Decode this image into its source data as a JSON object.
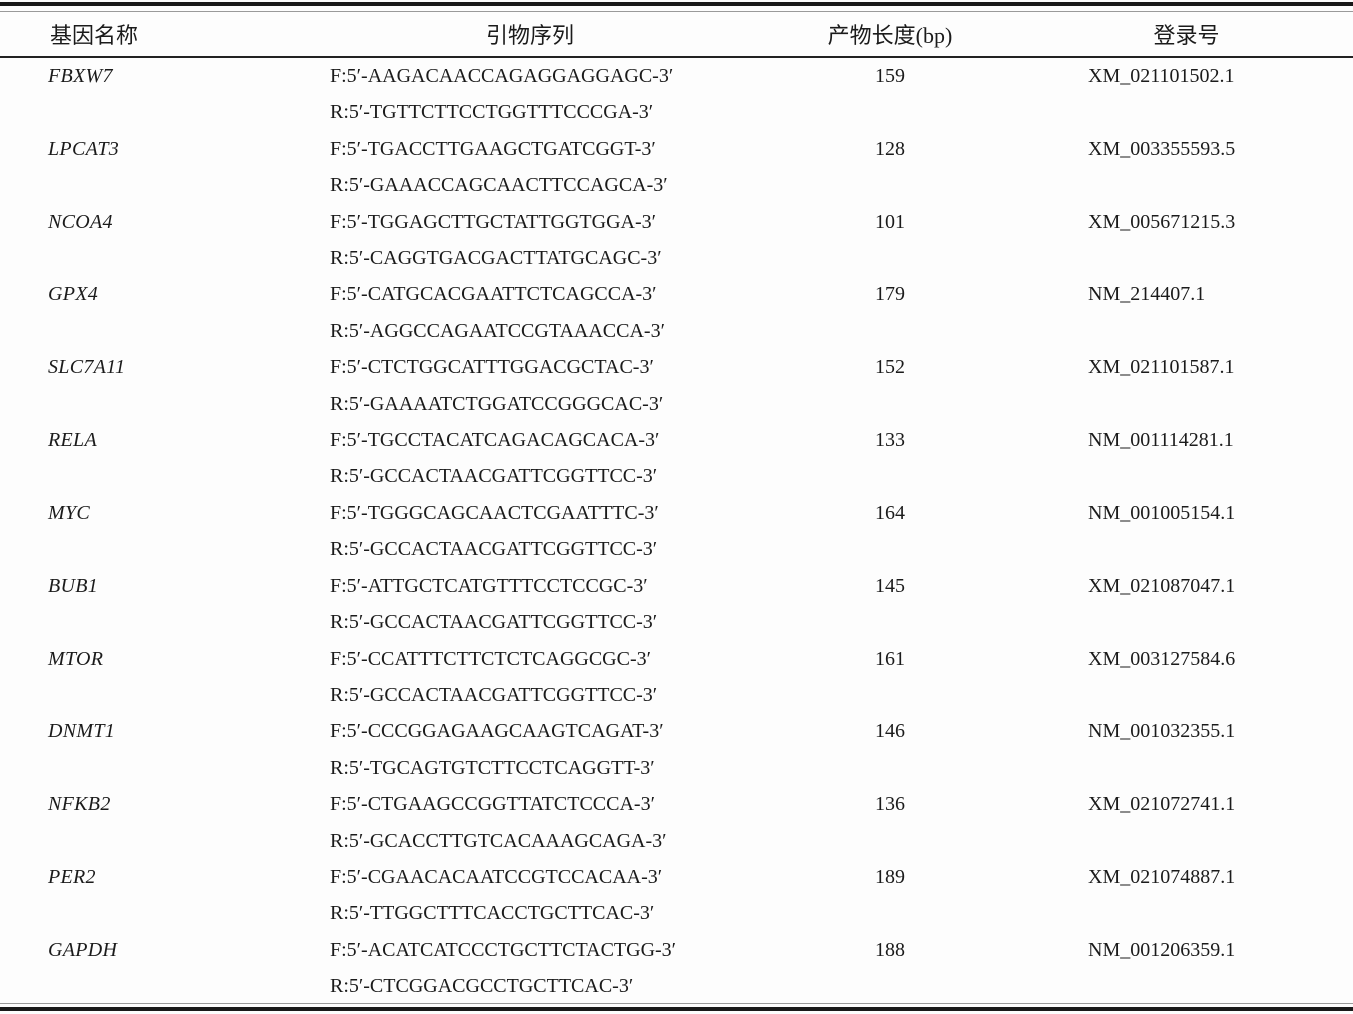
{
  "table": {
    "columns": [
      "基因名称",
      "引物序列",
      "产物长度(bp)",
      "登录号"
    ],
    "rows": [
      {
        "gene": "FBXW7",
        "forward": "F:5′-AAGACAACCAGAGGAGGAGC-3′",
        "reverse": "R:5′-TGTTCTTCCTGGTTTCCCGA-3′",
        "length": "159",
        "accession": "XM_021101502.1"
      },
      {
        "gene": "LPCAT3",
        "forward": "F:5′-TGACCTTGAAGCTGATCGGT-3′",
        "reverse": "R:5′-GAAACCAGCAACTTCCAGCA-3′",
        "length": "128",
        "accession": "XM_003355593.5"
      },
      {
        "gene": "NCOA4",
        "forward": "F:5′-TGGAGCTTGCTATTGGTGGA-3′",
        "reverse": "R:5′-CAGGTGACGACTTATGCAGC-3′",
        "length": "101",
        "accession": "XM_005671215.3"
      },
      {
        "gene": "GPX4",
        "forward": "F:5′-CATGCACGAATTCTCAGCCA-3′",
        "reverse": "R:5′-AGGCCAGAATCCGTAAACCA-3′",
        "length": "179",
        "accession": "NM_214407.1"
      },
      {
        "gene": "SLC7A11",
        "forward": "F:5′-CTCTGGCATTTGGACGCTAC-3′",
        "reverse": "R:5′-GAAAATCTGGATCCGGGCAC-3′",
        "length": "152",
        "accession": "XM_021101587.1"
      },
      {
        "gene": "RELA",
        "forward": "F:5′-TGCCTACATCAGACAGCACA-3′",
        "reverse": "R:5′-GCCACTAACGATTCGGTTCC-3′",
        "length": "133",
        "accession": "NM_001114281.1"
      },
      {
        "gene": "MYC",
        "forward": "F:5′-TGGGCAGCAACTCGAATTTC-3′",
        "reverse": "R:5′-GCCACTAACGATTCGGTTCC-3′",
        "length": "164",
        "accession": "NM_001005154.1"
      },
      {
        "gene": "BUB1",
        "forward": "F:5′-ATTGCTCATGTTTCCTCCGC-3′",
        "reverse": "R:5′-GCCACTAACGATTCGGTTCC-3′",
        "length": "145",
        "accession": "XM_021087047.1"
      },
      {
        "gene": "MTOR",
        "forward": "F:5′-CCATTTCTTCTCTCAGGCGC-3′",
        "reverse": "R:5′-GCCACTAACGATTCGGTTCC-3′",
        "length": "161",
        "accession": "XM_003127584.6"
      },
      {
        "gene": "DNMT1",
        "forward": "F:5′-CCCGGAGAAGCAAGTCAGAT-3′",
        "reverse": "R:5′-TGCAGTGTCTTCCTCAGGTT-3′",
        "length": "146",
        "accession": "NM_001032355.1"
      },
      {
        "gene": "NFKB2",
        "forward": "F:5′-CTGAAGCCGGTTATCTCCCA-3′",
        "reverse": "R:5′-GCACCTTGTCACAAAGCAGA-3′",
        "length": "136",
        "accession": "XM_021072741.1"
      },
      {
        "gene": "PER2",
        "forward": "F:5′-CGAACACAATCCGTCCACAA-3′",
        "reverse": "R:5′-TTGGCTTTCACCTGCTTCAC-3′",
        "length": "189",
        "accession": "XM_021074887.1"
      },
      {
        "gene": "GAPDH",
        "forward": "F:5′-ACATCATCCCTGCTTCTACTGG-3′",
        "reverse": "R:5′-CTCGGACGCCTGCTTCAC-3′",
        "length": "188",
        "accession": "NM_001206359.1"
      }
    ]
  }
}
